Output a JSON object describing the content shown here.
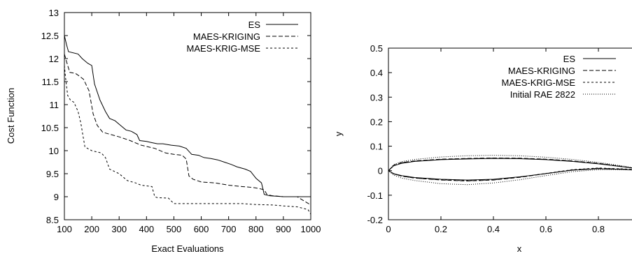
{
  "chart_data": [
    {
      "type": "line",
      "xlabel": "Exact Evaluations",
      "ylabel": "Cost Function",
      "xlim": [
        100,
        1000
      ],
      "ylim": [
        8.5,
        13
      ],
      "xticks": [
        100,
        200,
        300,
        400,
        500,
        600,
        700,
        800,
        900,
        1000
      ],
      "yticks": [
        "8.5",
        "9",
        "9.5",
        "10",
        "10.5",
        "11",
        "11.5",
        "12",
        "12.5",
        "13"
      ],
      "grid": false,
      "legend_position": "top-right",
      "series": [
        {
          "name": "ES",
          "dash": "solid",
          "x": [
            100,
            108,
            115,
            150,
            165,
            185,
            200,
            210,
            230,
            250,
            265,
            285,
            305,
            325,
            345,
            365,
            375,
            400,
            415,
            440,
            460,
            490,
            520,
            545,
            565,
            590,
            610,
            635,
            660,
            685,
            710,
            730,
            760,
            780,
            800,
            820,
            830,
            850,
            900,
            1000
          ],
          "y": [
            12.5,
            12.3,
            12.15,
            12.1,
            12.0,
            11.9,
            11.85,
            11.45,
            11.1,
            10.85,
            10.7,
            10.65,
            10.55,
            10.45,
            10.42,
            10.35,
            10.22,
            10.2,
            10.18,
            10.15,
            10.15,
            10.12,
            10.1,
            10.05,
            9.92,
            9.9,
            9.85,
            9.83,
            9.8,
            9.75,
            9.7,
            9.65,
            9.6,
            9.55,
            9.4,
            9.3,
            9.05,
            9.02,
            9.0,
            9.0
          ]
        },
        {
          "name": "MAES-KRIGING",
          "dash": "dashed",
          "x": [
            100,
            112,
            120,
            140,
            155,
            170,
            190,
            205,
            220,
            240,
            270,
            300,
            340,
            380,
            430,
            470,
            500,
            530,
            545,
            555,
            570,
            600,
            650,
            700,
            750,
            790,
            810,
            830,
            840,
            860,
            900,
            950,
            1000
          ],
          "y": [
            12.1,
            11.85,
            11.7,
            11.68,
            11.62,
            11.55,
            11.3,
            10.8,
            10.55,
            10.4,
            10.35,
            10.3,
            10.22,
            10.12,
            10.05,
            9.95,
            9.92,
            9.9,
            9.82,
            9.45,
            9.38,
            9.32,
            9.3,
            9.25,
            9.22,
            9.2,
            9.18,
            9.15,
            9.05,
            9.02,
            9.0,
            9.0,
            8.82
          ]
        },
        {
          "name": "MAES-KRIG-MSE",
          "dash": "dotted",
          "x": [
            100,
            104,
            112,
            122,
            135,
            150,
            160,
            175,
            200,
            235,
            250,
            265,
            300,
            330,
            360,
            380,
            420,
            430,
            440,
            480,
            500,
            550,
            600,
            650,
            700,
            750,
            800,
            860,
            900,
            950,
            990,
            1000
          ],
          "y": [
            11.85,
            11.6,
            11.2,
            11.1,
            11.05,
            10.85,
            10.6,
            10.08,
            10.0,
            9.95,
            9.85,
            9.6,
            9.5,
            9.35,
            9.3,
            9.25,
            9.22,
            9.0,
            8.98,
            8.97,
            8.85,
            8.85,
            8.85,
            8.85,
            8.85,
            8.85,
            8.83,
            8.82,
            8.8,
            8.78,
            8.72,
            8.62
          ]
        }
      ]
    },
    {
      "type": "line",
      "xlabel": "x",
      "ylabel": "y",
      "xlim": [
        0,
        1
      ],
      "ylim": [
        -0.2,
        0.5
      ],
      "xticks": [
        "0",
        "0.2",
        "0.4",
        "0.6",
        "0.8"
      ],
      "yticks": [
        "-0.2",
        "-0.1",
        "0",
        "0.1",
        "0.2",
        "0.3",
        "0.4",
        "0.5"
      ],
      "grid": false,
      "legend_position": "top-right",
      "series": [
        {
          "name": "ES",
          "dash": "solid",
          "x": [
            0,
            0.02,
            0.05,
            0.1,
            0.2,
            0.3,
            0.4,
            0.5,
            0.6,
            0.7,
            0.8,
            0.9,
            1.0,
            0.9,
            0.8,
            0.7,
            0.6,
            0.5,
            0.4,
            0.3,
            0.2,
            0.1,
            0.05,
            0.02,
            0
          ],
          "y": [
            0,
            0.02,
            0.03,
            0.038,
            0.045,
            0.048,
            0.05,
            0.049,
            0.045,
            0.038,
            0.028,
            0.015,
            0.0,
            0.005,
            0.008,
            0.002,
            -0.012,
            -0.025,
            -0.035,
            -0.038,
            -0.035,
            -0.028,
            -0.02,
            -0.012,
            0
          ]
        },
        {
          "name": "MAES-KRIGING",
          "dash": "dashed",
          "x": [
            0,
            0.02,
            0.05,
            0.1,
            0.2,
            0.3,
            0.4,
            0.5,
            0.6,
            0.7,
            0.8,
            0.9,
            1.0,
            0.9,
            0.8,
            0.7,
            0.6,
            0.5,
            0.4,
            0.3,
            0.2,
            0.1,
            0.05,
            0.02,
            0
          ],
          "y": [
            0,
            0.022,
            0.033,
            0.04,
            0.047,
            0.05,
            0.052,
            0.051,
            0.047,
            0.04,
            0.03,
            0.016,
            0.0,
            0.006,
            0.01,
            0.003,
            -0.012,
            -0.027,
            -0.038,
            -0.042,
            -0.038,
            -0.03,
            -0.022,
            -0.013,
            0
          ]
        },
        {
          "name": "MAES-KRIG-MSE",
          "dash": "dotted",
          "x": [
            0,
            0.02,
            0.05,
            0.1,
            0.2,
            0.3,
            0.4,
            0.5,
            0.6,
            0.7,
            0.8,
            0.9,
            1.0,
            0.9,
            0.8,
            0.7,
            0.6,
            0.5,
            0.4,
            0.3,
            0.2,
            0.1,
            0.05,
            0.02,
            0
          ],
          "y": [
            0,
            0.021,
            0.032,
            0.039,
            0.046,
            0.049,
            0.051,
            0.05,
            0.046,
            0.039,
            0.029,
            0.015,
            0.0,
            0.007,
            0.011,
            0.004,
            -0.011,
            -0.026,
            -0.037,
            -0.041,
            -0.037,
            -0.03,
            -0.022,
            -0.013,
            0
          ]
        },
        {
          "name": "Initial RAE 2822",
          "dash": "fine-dotted",
          "x": [
            0,
            0.02,
            0.05,
            0.1,
            0.2,
            0.3,
            0.4,
            0.5,
            0.6,
            0.7,
            0.8,
            0.9,
            1.0,
            0.9,
            0.8,
            0.7,
            0.6,
            0.5,
            0.4,
            0.3,
            0.2,
            0.1,
            0.05,
            0.02,
            0
          ],
          "y": [
            0,
            0.025,
            0.037,
            0.046,
            0.056,
            0.061,
            0.063,
            0.061,
            0.055,
            0.046,
            0.034,
            0.018,
            0.0,
            0.004,
            0.004,
            -0.004,
            -0.02,
            -0.037,
            -0.05,
            -0.057,
            -0.053,
            -0.04,
            -0.03,
            -0.018,
            0
          ]
        }
      ]
    }
  ]
}
